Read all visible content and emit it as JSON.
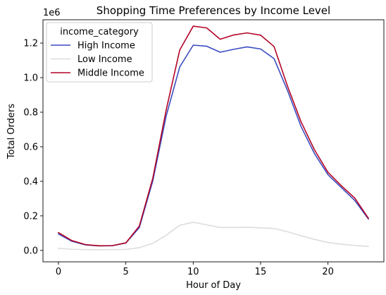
{
  "chart_data": {
    "type": "line",
    "title": "Shopping Time Preferences by Income Level",
    "xlabel": "Hour of Day",
    "ylabel": "Total Orders",
    "y_offset_text": "1e6",
    "xlim": [
      -1.15,
      24.15
    ],
    "ylim": [
      -0.066,
      1.335
    ],
    "x_ticks": [
      0,
      5,
      10,
      15,
      20
    ],
    "x_tick_labels": [
      "0",
      "5",
      "10",
      "15",
      "20"
    ],
    "y_ticks": [
      0.0,
      0.2,
      0.4,
      0.6,
      0.8,
      1.0,
      1.2
    ],
    "y_tick_labels": [
      "0.0",
      "0.2",
      "0.4",
      "0.6",
      "0.8",
      "1.0",
      "1.2"
    ],
    "grid": false,
    "legend": {
      "title": "income_category",
      "placement": "top-left"
    },
    "x": [
      0,
      1,
      2,
      3,
      4,
      5,
      6,
      7,
      8,
      9,
      10,
      11,
      12,
      13,
      14,
      15,
      16,
      17,
      18,
      19,
      20,
      21,
      22,
      23
    ],
    "series": [
      {
        "name": "High Income",
        "color": "#3b4cc0",
        "values": [
          0.095,
          0.053,
          0.032,
          0.026,
          0.027,
          0.043,
          0.132,
          0.402,
          0.78,
          1.062,
          1.188,
          1.182,
          1.147,
          1.164,
          1.178,
          1.166,
          1.11,
          0.925,
          0.718,
          0.56,
          0.438,
          0.363,
          0.288,
          0.182
        ]
      },
      {
        "name": "Low Income",
        "color": "#dddddd",
        "values": [
          0.012,
          0.007,
          0.005,
          0.004,
          0.005,
          0.006,
          0.016,
          0.041,
          0.088,
          0.146,
          0.163,
          0.148,
          0.133,
          0.133,
          0.134,
          0.131,
          0.127,
          0.108,
          0.085,
          0.064,
          0.046,
          0.036,
          0.029,
          0.023
        ]
      },
      {
        "name": "Middle Income",
        "color": "#b40426",
        "values": [
          0.103,
          0.057,
          0.034,
          0.027,
          0.028,
          0.044,
          0.141,
          0.418,
          0.815,
          1.16,
          1.298,
          1.288,
          1.222,
          1.247,
          1.259,
          1.246,
          1.18,
          0.95,
          0.745,
          0.582,
          0.452,
          0.374,
          0.302,
          0.186
        ]
      }
    ]
  }
}
